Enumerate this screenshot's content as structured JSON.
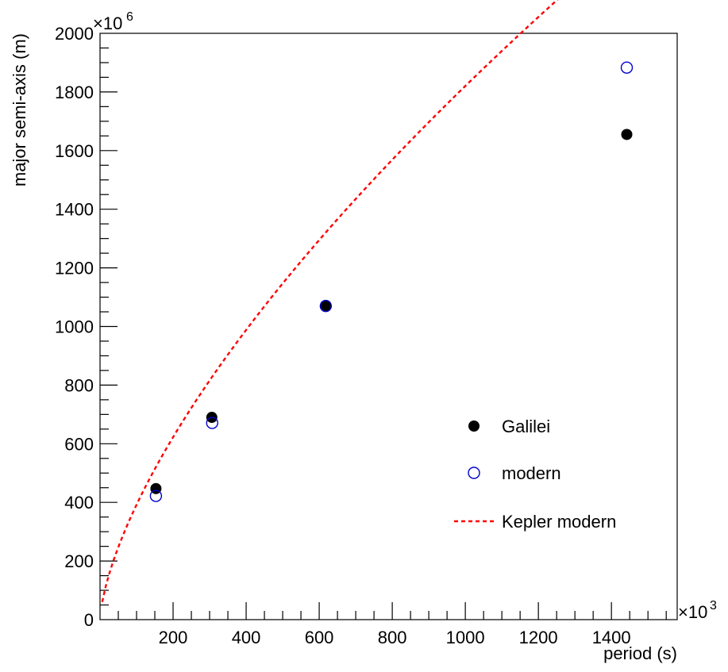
{
  "chart_data": {
    "type": "scatter",
    "xlabel": "period (s)",
    "ylabel": "major semi-axis (m)",
    "x_multiplier": "×10",
    "x_multiplier_exp": "3",
    "y_multiplier": "×10",
    "y_multiplier_exp": "6",
    "xlim": [
      0,
      1580
    ],
    "ylim": [
      0,
      2000
    ],
    "x_ticks": [
      {
        "value": 200,
        "label": "200"
      },
      {
        "value": 400,
        "label": "400"
      },
      {
        "value": 600,
        "label": "600"
      },
      {
        "value": 800,
        "label": "800"
      },
      {
        "value": 1000,
        "label": "1000"
      },
      {
        "value": 1200,
        "label": "1200"
      },
      {
        "value": 1400,
        "label": "1400"
      }
    ],
    "y_ticks": [
      {
        "value": 0,
        "label": "0"
      },
      {
        "value": 200,
        "label": "200"
      },
      {
        "value": 400,
        "label": "400"
      },
      {
        "value": 600,
        "label": "600"
      },
      {
        "value": 800,
        "label": "800"
      },
      {
        "value": 1000,
        "label": "1000"
      },
      {
        "value": 1200,
        "label": "1200"
      },
      {
        "value": 1400,
        "label": "1400"
      },
      {
        "value": 1600,
        "label": "1600"
      },
      {
        "value": 1800,
        "label": "1800"
      },
      {
        "value": 2000,
        "label": "2000"
      }
    ],
    "grid": false,
    "legend_position": "right",
    "series": [
      {
        "name": "Galilei",
        "kind": "points",
        "marker": "filled-circle",
        "color": "#000000",
        "points": [
          {
            "x": 153,
            "y": 447
          },
          {
            "x": 306,
            "y": 690
          },
          {
            "x": 618,
            "y": 1070
          },
          {
            "x": 1442,
            "y": 1655
          }
        ]
      },
      {
        "name": "modern",
        "kind": "points",
        "marker": "open-circle",
        "color": "#0000cc",
        "points": [
          {
            "x": 153,
            "y": 422
          },
          {
            "x": 307,
            "y": 671
          },
          {
            "x": 618,
            "y": 1070
          },
          {
            "x": 1442,
            "y": 1883
          }
        ]
      },
      {
        "name": "Kepler modern",
        "kind": "curve",
        "line_style": "dashed",
        "color": "#ff0000",
        "x_range": [
          6,
          1570
        ],
        "formula_coefficient": 18.2,
        "formula_exponent": 0.6667
      }
    ]
  }
}
